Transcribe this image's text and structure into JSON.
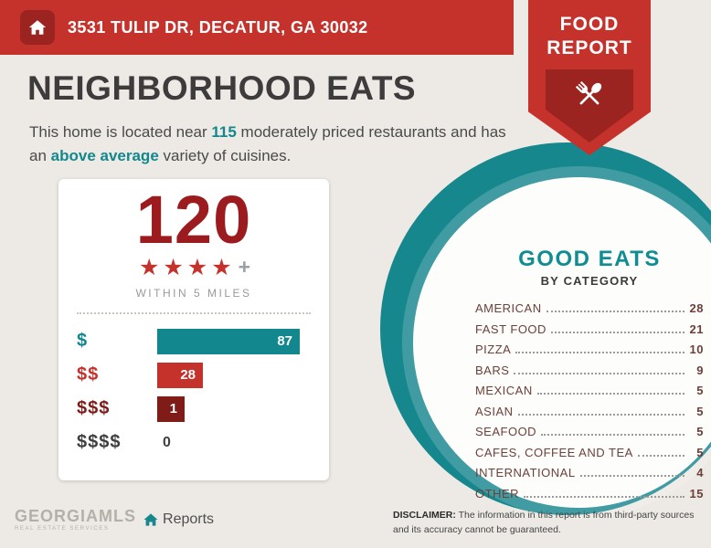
{
  "header": {
    "address": "3531 TULIP DR, DECATUR, GA 30032"
  },
  "ribbon": {
    "line1": "FOOD",
    "line2": "REPORT"
  },
  "title": "NEIGHBORHOOD EATS",
  "intro": {
    "pre": "This home is located near ",
    "count": "115",
    "mid": " moderately priced restaurants and has an ",
    "highlight": "above average",
    "post": " variety of cuisines."
  },
  "score_card": {
    "total": "120",
    "stars": 4,
    "plus": "+",
    "radius_label": "WITHIN 5 MILES",
    "chart_rows": [
      {
        "label": "$",
        "value": 87,
        "color": "#12888e"
      },
      {
        "label": "$$",
        "value": 28,
        "color": "#c5322c"
      },
      {
        "label": "$$$",
        "value": 1,
        "color": "#7f1c18"
      },
      {
        "label": "$$$$",
        "value": 0,
        "color": "#3f3f3f"
      }
    ]
  },
  "good_eats": {
    "title": "GOOD EATS",
    "subtitle": "BY CATEGORY",
    "categories": [
      {
        "name": "AMERICAN",
        "count": 28
      },
      {
        "name": "FAST FOOD",
        "count": 21
      },
      {
        "name": "PIZZA",
        "count": 10
      },
      {
        "name": "BARS",
        "count": 9
      },
      {
        "name": "MEXICAN",
        "count": 5
      },
      {
        "name": "ASIAN",
        "count": 5
      },
      {
        "name": "SEAFOOD",
        "count": 5
      },
      {
        "name": "CAFES, COFFEE AND TEA",
        "count": 5
      },
      {
        "name": "INTERNATIONAL",
        "count": 4
      },
      {
        "name": "OTHER",
        "count": 15
      }
    ]
  },
  "footer": {
    "logo_main": "GEORGIAMLS",
    "logo_sub": "REAL ESTATE SERVICES",
    "reports_label": "Reports",
    "disclaimer_label": "DISCLAIMER:",
    "disclaimer_text": " The information in this report is from third-party sources and its accuracy cannot be guaranteed."
  },
  "colors": {
    "brand_red": "#c5322c",
    "dark_red": "#9b2420",
    "maroon": "#9c1b1e",
    "teal": "#12888e",
    "background": "#edeae5"
  },
  "chart_data": [
    {
      "type": "bar",
      "orientation": "horizontal",
      "title": "120 restaurants within 5 miles by price level",
      "categories": [
        "$",
        "$$",
        "$$$",
        "$$$$"
      ],
      "values": [
        87,
        28,
        1,
        0
      ],
      "xlim": [
        0,
        87
      ],
      "legend": false,
      "grid": false
    },
    {
      "type": "table",
      "title": "GOOD EATS BY CATEGORY",
      "categories": [
        "AMERICAN",
        "FAST FOOD",
        "PIZZA",
        "BARS",
        "MEXICAN",
        "ASIAN",
        "SEAFOOD",
        "CAFES, COFFEE AND TEA",
        "INTERNATIONAL",
        "OTHER"
      ],
      "values": [
        28,
        21,
        10,
        9,
        5,
        5,
        5,
        5,
        4,
        15
      ]
    }
  ]
}
